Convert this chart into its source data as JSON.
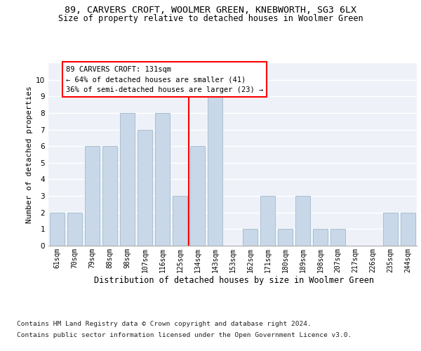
{
  "title": "89, CARVERS CROFT, WOOLMER GREEN, KNEBWORTH, SG3 6LX",
  "subtitle": "Size of property relative to detached houses in Woolmer Green",
  "xlabel": "Distribution of detached houses by size in Woolmer Green",
  "ylabel": "Number of detached properties",
  "categories": [
    "61sqm",
    "70sqm",
    "79sqm",
    "88sqm",
    "98sqm",
    "107sqm",
    "116sqm",
    "125sqm",
    "134sqm",
    "143sqm",
    "153sqm",
    "162sqm",
    "171sqm",
    "180sqm",
    "189sqm",
    "198sqm",
    "207sqm",
    "217sqm",
    "226sqm",
    "235sqm",
    "244sqm"
  ],
  "values": [
    2,
    2,
    6,
    6,
    8,
    7,
    8,
    3,
    6,
    9,
    0,
    1,
    3,
    1,
    3,
    1,
    1,
    0,
    0,
    2,
    2
  ],
  "bar_color": "#c8d8e8",
  "bar_edge_color": "#a0b8cc",
  "red_line_index": 7.5,
  "annotation_title": "89 CARVERS CROFT: 131sqm",
  "annotation_line1": "← 64% of detached houses are smaller (41)",
  "annotation_line2": "36% of semi-detached houses are larger (23) →",
  "ylim": [
    0,
    11
  ],
  "yticks": [
    0,
    1,
    2,
    3,
    4,
    5,
    6,
    7,
    8,
    9,
    10
  ],
  "background_color": "#eef2f8",
  "grid_color": "#ffffff",
  "footer1": "Contains HM Land Registry data © Crown copyright and database right 2024.",
  "footer2": "Contains public sector information licensed under the Open Government Licence v3.0.",
  "title_fontsize": 9.5,
  "subtitle_fontsize": 8.5,
  "xlabel_fontsize": 8.5,
  "ylabel_fontsize": 8,
  "tick_fontsize": 7,
  "footer_fontsize": 6.8,
  "annotation_fontsize": 7.5
}
